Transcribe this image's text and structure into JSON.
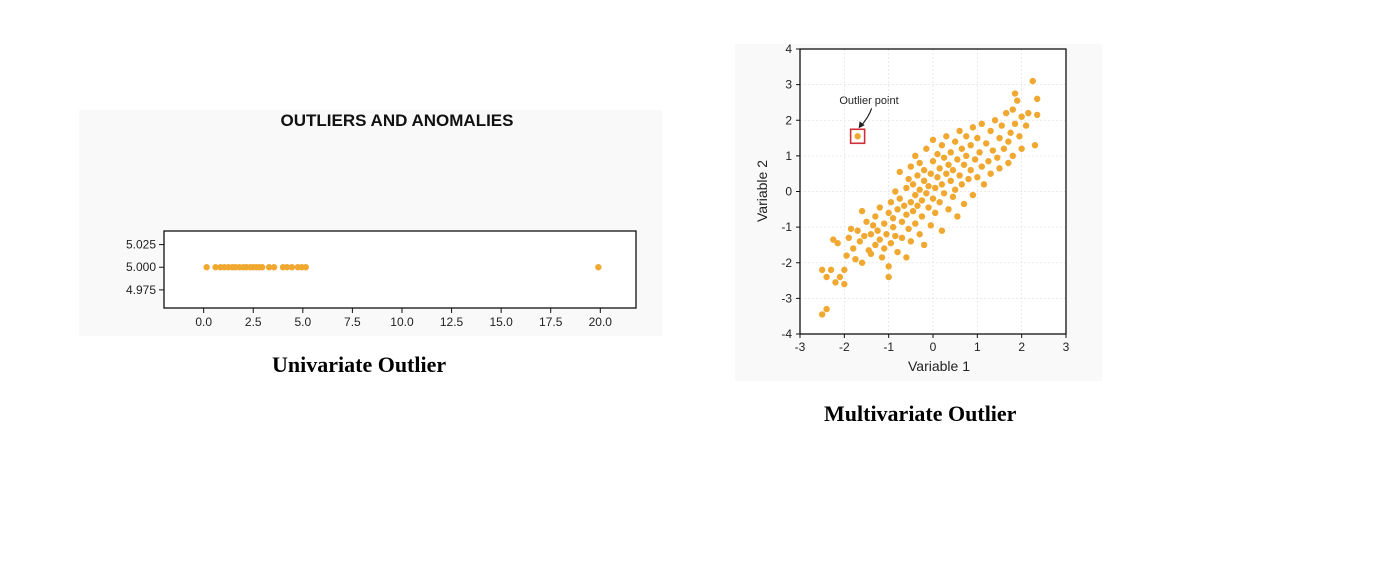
{
  "colors": {
    "point": "#f0a830",
    "marker": "#d0303a",
    "axis": "#111111",
    "grid": "#e4e4e4"
  },
  "chart_data": [
    {
      "type": "scatter",
      "title": "OUTLIERS AND ANOMALIES",
      "xlabel": "",
      "ylabel": "",
      "xlim": [
        -2,
        21.8
      ],
      "ylim": [
        4.955,
        5.04
      ],
      "xticks": [
        {
          "v": 0,
          "label": "0.0"
        },
        {
          "v": 2.5,
          "label": "2.5"
        },
        {
          "v": 5,
          "label": "5.0"
        },
        {
          "v": 7.5,
          "label": "7.5"
        },
        {
          "v": 10,
          "label": "10.0"
        },
        {
          "v": 12.5,
          "label": "12.5"
        },
        {
          "v": 15,
          "label": "15.0"
        },
        {
          "v": 17.5,
          "label": "17.5"
        },
        {
          "v": 20,
          "label": "20.0"
        }
      ],
      "yticks": [
        {
          "v": 4.975,
          "label": "4.975"
        },
        {
          "v": 5.0,
          "label": "5.000"
        },
        {
          "v": 5.025,
          "label": "5.025"
        }
      ],
      "grid": false,
      "points": [
        [
          0.15,
          5
        ],
        [
          0.6,
          5
        ],
        [
          0.85,
          5
        ],
        [
          1.05,
          5
        ],
        [
          1.25,
          5
        ],
        [
          1.45,
          5
        ],
        [
          1.6,
          5
        ],
        [
          1.8,
          5
        ],
        [
          2.0,
          5
        ],
        [
          2.15,
          5
        ],
        [
          2.35,
          5
        ],
        [
          2.5,
          5
        ],
        [
          2.65,
          5
        ],
        [
          2.8,
          5
        ],
        [
          2.95,
          5
        ],
        [
          3.3,
          5
        ],
        [
          3.55,
          5
        ],
        [
          4.0,
          5
        ],
        [
          4.2,
          5
        ],
        [
          4.45,
          5
        ],
        [
          4.75,
          5
        ],
        [
          4.95,
          5
        ],
        [
          5.15,
          5
        ],
        [
          19.9,
          5
        ]
      ]
    },
    {
      "type": "scatter",
      "title": "",
      "xlabel": "Variable 1",
      "ylabel": "Variable 2",
      "xlim": [
        -3,
        3
      ],
      "ylim": [
        -4,
        4
      ],
      "xticks": [
        -3,
        -2,
        -1,
        0,
        1,
        2,
        3
      ],
      "yticks": [
        -4,
        -3,
        -2,
        -1,
        0,
        1,
        2,
        3,
        4
      ],
      "grid": true,
      "annotation": {
        "text": "Outlier point",
        "x": -1.7,
        "y": 1.55
      },
      "outlier": [
        -1.7,
        1.55
      ],
      "points": [
        [
          -2.5,
          -3.45
        ],
        [
          -2.4,
          -3.3
        ],
        [
          -2.5,
          -2.2
        ],
        [
          -2.4,
          -2.4
        ],
        [
          -2.3,
          -2.2
        ],
        [
          -2.2,
          -2.55
        ],
        [
          -2.25,
          -1.35
        ],
        [
          -2.15,
          -1.45
        ],
        [
          -2.1,
          -2.4
        ],
        [
          -2.0,
          -2.2
        ],
        [
          -2.0,
          -2.6
        ],
        [
          -1.95,
          -1.8
        ],
        [
          -1.9,
          -1.3
        ],
        [
          -1.85,
          -1.05
        ],
        [
          -1.8,
          -1.6
        ],
        [
          -1.75,
          -1.9
        ],
        [
          -1.7,
          -1.1
        ],
        [
          -1.65,
          -1.4
        ],
        [
          -1.6,
          -0.55
        ],
        [
          -1.6,
          -2.0
        ],
        [
          -1.55,
          -1.25
        ],
        [
          -1.5,
          -0.85
        ],
        [
          -1.45,
          -1.65
        ],
        [
          -1.4,
          -1.2
        ],
        [
          -1.4,
          -1.75
        ],
        [
          -1.35,
          -0.95
        ],
        [
          -1.3,
          -1.5
        ],
        [
          -1.3,
          -0.7
        ],
        [
          -1.25,
          -1.1
        ],
        [
          -1.2,
          -1.35
        ],
        [
          -1.2,
          -0.45
        ],
        [
          -1.15,
          -1.85
        ],
        [
          -1.1,
          -1.6
        ],
        [
          -1.1,
          -0.9
        ],
        [
          -1.05,
          -1.2
        ],
        [
          -1.0,
          -2.1
        ],
        [
          -1.0,
          -2.4
        ],
        [
          -1.0,
          -0.6
        ],
        [
          -0.95,
          -1.45
        ],
        [
          -0.95,
          -0.3
        ],
        [
          -0.9,
          -1.0
        ],
        [
          -0.9,
          -0.75
        ],
        [
          -0.85,
          -1.25
        ],
        [
          -0.85,
          0.0
        ],
        [
          -0.8,
          -0.5
        ],
        [
          -0.8,
          -1.7
        ],
        [
          -0.75,
          -0.2
        ],
        [
          -0.75,
          0.55
        ],
        [
          -0.7,
          -0.85
        ],
        [
          -0.7,
          -1.3
        ],
        [
          -0.65,
          -0.4
        ],
        [
          -0.6,
          0.1
        ],
        [
          -0.6,
          -0.65
        ],
        [
          -0.6,
          -1.85
        ],
        [
          -0.55,
          -1.05
        ],
        [
          -0.55,
          0.35
        ],
        [
          -0.5,
          -0.3
        ],
        [
          -0.5,
          0.7
        ],
        [
          -0.5,
          -1.4
        ],
        [
          -0.45,
          -0.55
        ],
        [
          -0.45,
          0.2
        ],
        [
          -0.4,
          -0.1
        ],
        [
          -0.4,
          -0.9
        ],
        [
          -0.4,
          1.0
        ],
        [
          -0.35,
          -0.4
        ],
        [
          -0.35,
          0.45
        ],
        [
          -0.3,
          -1.2
        ],
        [
          -0.3,
          0.05
        ],
        [
          -0.3,
          0.8
        ],
        [
          -0.25,
          -0.25
        ],
        [
          -0.25,
          -0.7
        ],
        [
          -0.2,
          0.3
        ],
        [
          -0.2,
          0.6
        ],
        [
          -0.2,
          -1.5
        ],
        [
          -0.15,
          -0.05
        ],
        [
          -0.15,
          1.2
        ],
        [
          -0.1,
          -0.45
        ],
        [
          -0.1,
          0.15
        ],
        [
          -0.05,
          0.5
        ],
        [
          -0.05,
          -0.95
        ],
        [
          0.0,
          -0.2
        ],
        [
          0.0,
          0.85
        ],
        [
          0.0,
          1.45
        ],
        [
          0.05,
          0.1
        ],
        [
          0.05,
          -0.6
        ],
        [
          0.1,
          0.4
        ],
        [
          0.1,
          1.05
        ],
        [
          0.15,
          -0.3
        ],
        [
          0.15,
          0.65
        ],
        [
          0.2,
          0.2
        ],
        [
          0.2,
          1.3
        ],
        [
          0.2,
          -1.1
        ],
        [
          0.25,
          0.95
        ],
        [
          0.25,
          -0.05
        ],
        [
          0.3,
          0.5
        ],
        [
          0.3,
          1.55
        ],
        [
          0.35,
          0.75
        ],
        [
          0.35,
          -0.5
        ],
        [
          0.4,
          0.3
        ],
        [
          0.4,
          1.1
        ],
        [
          0.45,
          -0.15
        ],
        [
          0.45,
          0.6
        ],
        [
          0.5,
          1.4
        ],
        [
          0.5,
          0.05
        ],
        [
          0.55,
          0.9
        ],
        [
          0.55,
          -0.7
        ],
        [
          0.6,
          0.45
        ],
        [
          0.6,
          1.7
        ],
        [
          0.65,
          1.2
        ],
        [
          0.65,
          0.2
        ],
        [
          0.7,
          0.75
        ],
        [
          0.7,
          -0.35
        ],
        [
          0.75,
          1.0
        ],
        [
          0.75,
          1.55
        ],
        [
          0.8,
          0.35
        ],
        [
          0.85,
          1.3
        ],
        [
          0.85,
          0.6
        ],
        [
          0.9,
          -0.1
        ],
        [
          0.9,
          1.8
        ],
        [
          0.95,
          0.9
        ],
        [
          1.0,
          1.5
        ],
        [
          1.0,
          0.4
        ],
        [
          1.05,
          1.1
        ],
        [
          1.1,
          0.7
        ],
        [
          1.1,
          1.9
        ],
        [
          1.15,
          0.2
        ],
        [
          1.2,
          1.35
        ],
        [
          1.25,
          0.85
        ],
        [
          1.3,
          1.7
        ],
        [
          1.3,
          0.5
        ],
        [
          1.35,
          1.15
        ],
        [
          1.4,
          2.0
        ],
        [
          1.45,
          0.95
        ],
        [
          1.5,
          1.5
        ],
        [
          1.5,
          0.65
        ],
        [
          1.55,
          1.85
        ],
        [
          1.6,
          1.2
        ],
        [
          1.65,
          2.2
        ],
        [
          1.7,
          1.4
        ],
        [
          1.7,
          0.8
        ],
        [
          1.75,
          1.65
        ],
        [
          1.8,
          2.3
        ],
        [
          1.8,
          1.0
        ],
        [
          1.85,
          1.9
        ],
        [
          1.85,
          2.75
        ],
        [
          1.9,
          2.55
        ],
        [
          1.95,
          1.55
        ],
        [
          2.0,
          2.1
        ],
        [
          2.0,
          1.2
        ],
        [
          2.1,
          1.85
        ],
        [
          2.15,
          2.2
        ],
        [
          2.25,
          3.1
        ],
        [
          2.3,
          1.3
        ],
        [
          2.35,
          2.6
        ],
        [
          2.35,
          2.15
        ]
      ]
    }
  ],
  "captions": {
    "left": "Univariate Outlier",
    "right": "Multivariate Outlier"
  }
}
